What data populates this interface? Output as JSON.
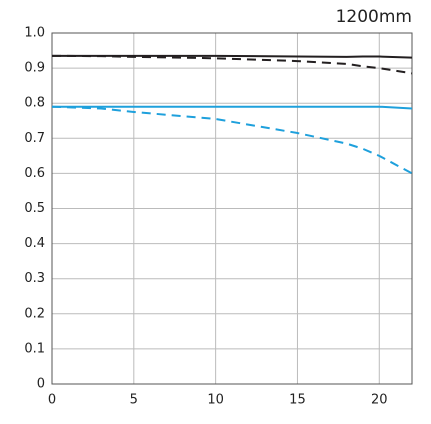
{
  "chart_data": {
    "type": "line",
    "title": "1200mm",
    "x": [
      0,
      3,
      5,
      10,
      15,
      18,
      19,
      20,
      22
    ],
    "series": [
      {
        "color": "#231f20",
        "dash": false,
        "values": [
          0.935,
          0.935,
          0.935,
          0.935,
          0.933,
          0.932,
          0.933,
          0.933,
          0.93
        ]
      },
      {
        "color": "#231f20",
        "dash": true,
        "values": [
          0.935,
          0.934,
          0.932,
          0.928,
          0.92,
          0.912,
          0.905,
          0.9,
          0.885
        ]
      },
      {
        "color": "#1ea0dc",
        "dash": false,
        "values": [
          0.79,
          0.79,
          0.79,
          0.79,
          0.79,
          0.79,
          0.79,
          0.79,
          0.785
        ]
      },
      {
        "color": "#1ea0dc",
        "dash": true,
        "values": [
          0.79,
          0.785,
          0.775,
          0.755,
          0.715,
          0.685,
          0.67,
          0.65,
          0.6
        ]
      }
    ],
    "xlim": [
      0,
      22
    ],
    "xticks": [
      0,
      5,
      10,
      15,
      20
    ],
    "ylim": [
      0,
      1
    ],
    "yticks": [
      0,
      0.1,
      0.2,
      0.3,
      0.4,
      0.5,
      0.6,
      0.7,
      0.8,
      0.9,
      {
        "value": 1,
        "label": "1.0"
      }
    ],
    "grid": true
  }
}
